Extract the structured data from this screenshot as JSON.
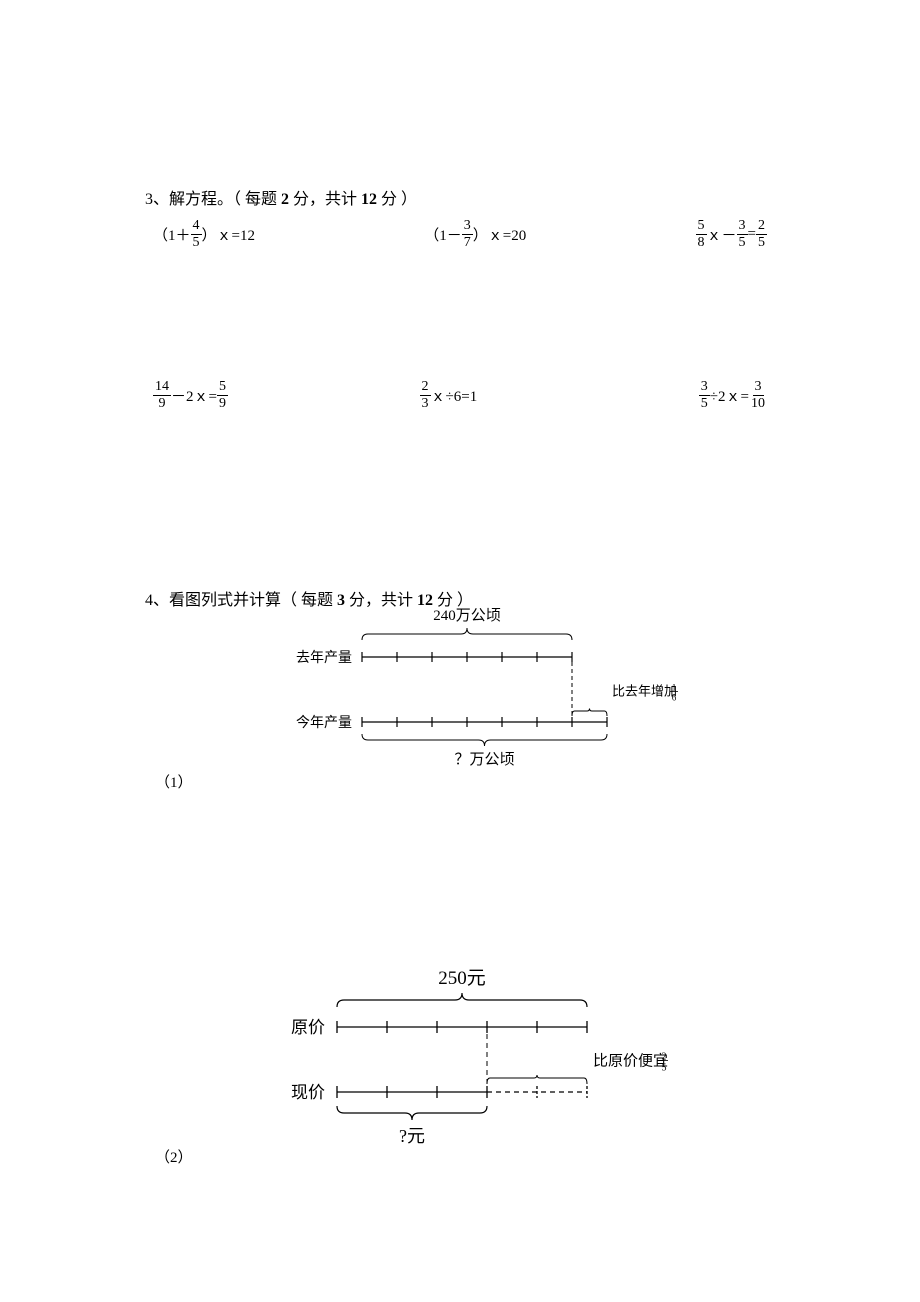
{
  "section3": {
    "title_prefix": "3、解方程。（ 每题 ",
    "points_each": "2",
    "title_mid": " 分，共计 ",
    "points_total": "12",
    "title_suffix": " 分 ）",
    "equations": {
      "r1c1": {
        "paren_open": "（1＋",
        "f1n": "4",
        "f1d": "5",
        "paren_close": "）ｘ=12"
      },
      "r1c2": {
        "paren_open": "（1－",
        "f1n": "3",
        "f1d": "7",
        "paren_close": "）ｘ=20"
      },
      "r1c3": {
        "f1n": "5",
        "f1d": "8",
        "mid": "ｘ－",
        "f2n": "3",
        "f2d": "5",
        "eq": "=",
        "f3n": "2",
        "f3d": "5"
      },
      "r2c1": {
        "f1n": "14",
        "f1d": "9",
        "mid": "－2ｘ=",
        "f2n": "5",
        "f2d": "9"
      },
      "r2c2": {
        "f1n": "2",
        "f1d": "3",
        "rest": "ｘ÷6=1"
      },
      "r2c3": {
        "f1n": "3",
        "f1d": "5",
        "mid": "÷2ｘ=",
        "f2n": "3",
        "f2d": "10"
      }
    }
  },
  "section4": {
    "title_prefix": "4、看图列式并计算（ 每题 ",
    "points_each": "3",
    "title_mid": " 分，共计 ",
    "points_total": "12",
    "title_suffix": " 分 ）",
    "d1": {
      "label": "（1）",
      "top_value": "240万公顷",
      "left_label_top": "去年产量",
      "left_label_bot": "今年产量",
      "right_label": "比去年增加",
      "right_frac_n": "1",
      "right_frac_d": "6",
      "bottom_value": "？万公顷",
      "ticks_top": 6,
      "ticks_bottom": 7,
      "colors": {
        "stroke": "#000000",
        "text": "#000000"
      }
    },
    "d2": {
      "label": "（2）",
      "top_value": "250元",
      "left_label_top": "原价",
      "left_label_bot": "现价",
      "right_label": "比原价便宜",
      "right_frac_n": "2",
      "right_frac_d": "5",
      "bottom_value": "?元",
      "ticks_top": 5,
      "ticks_ratio": 0.6,
      "colors": {
        "stroke": "#000000",
        "text": "#000000"
      }
    }
  }
}
